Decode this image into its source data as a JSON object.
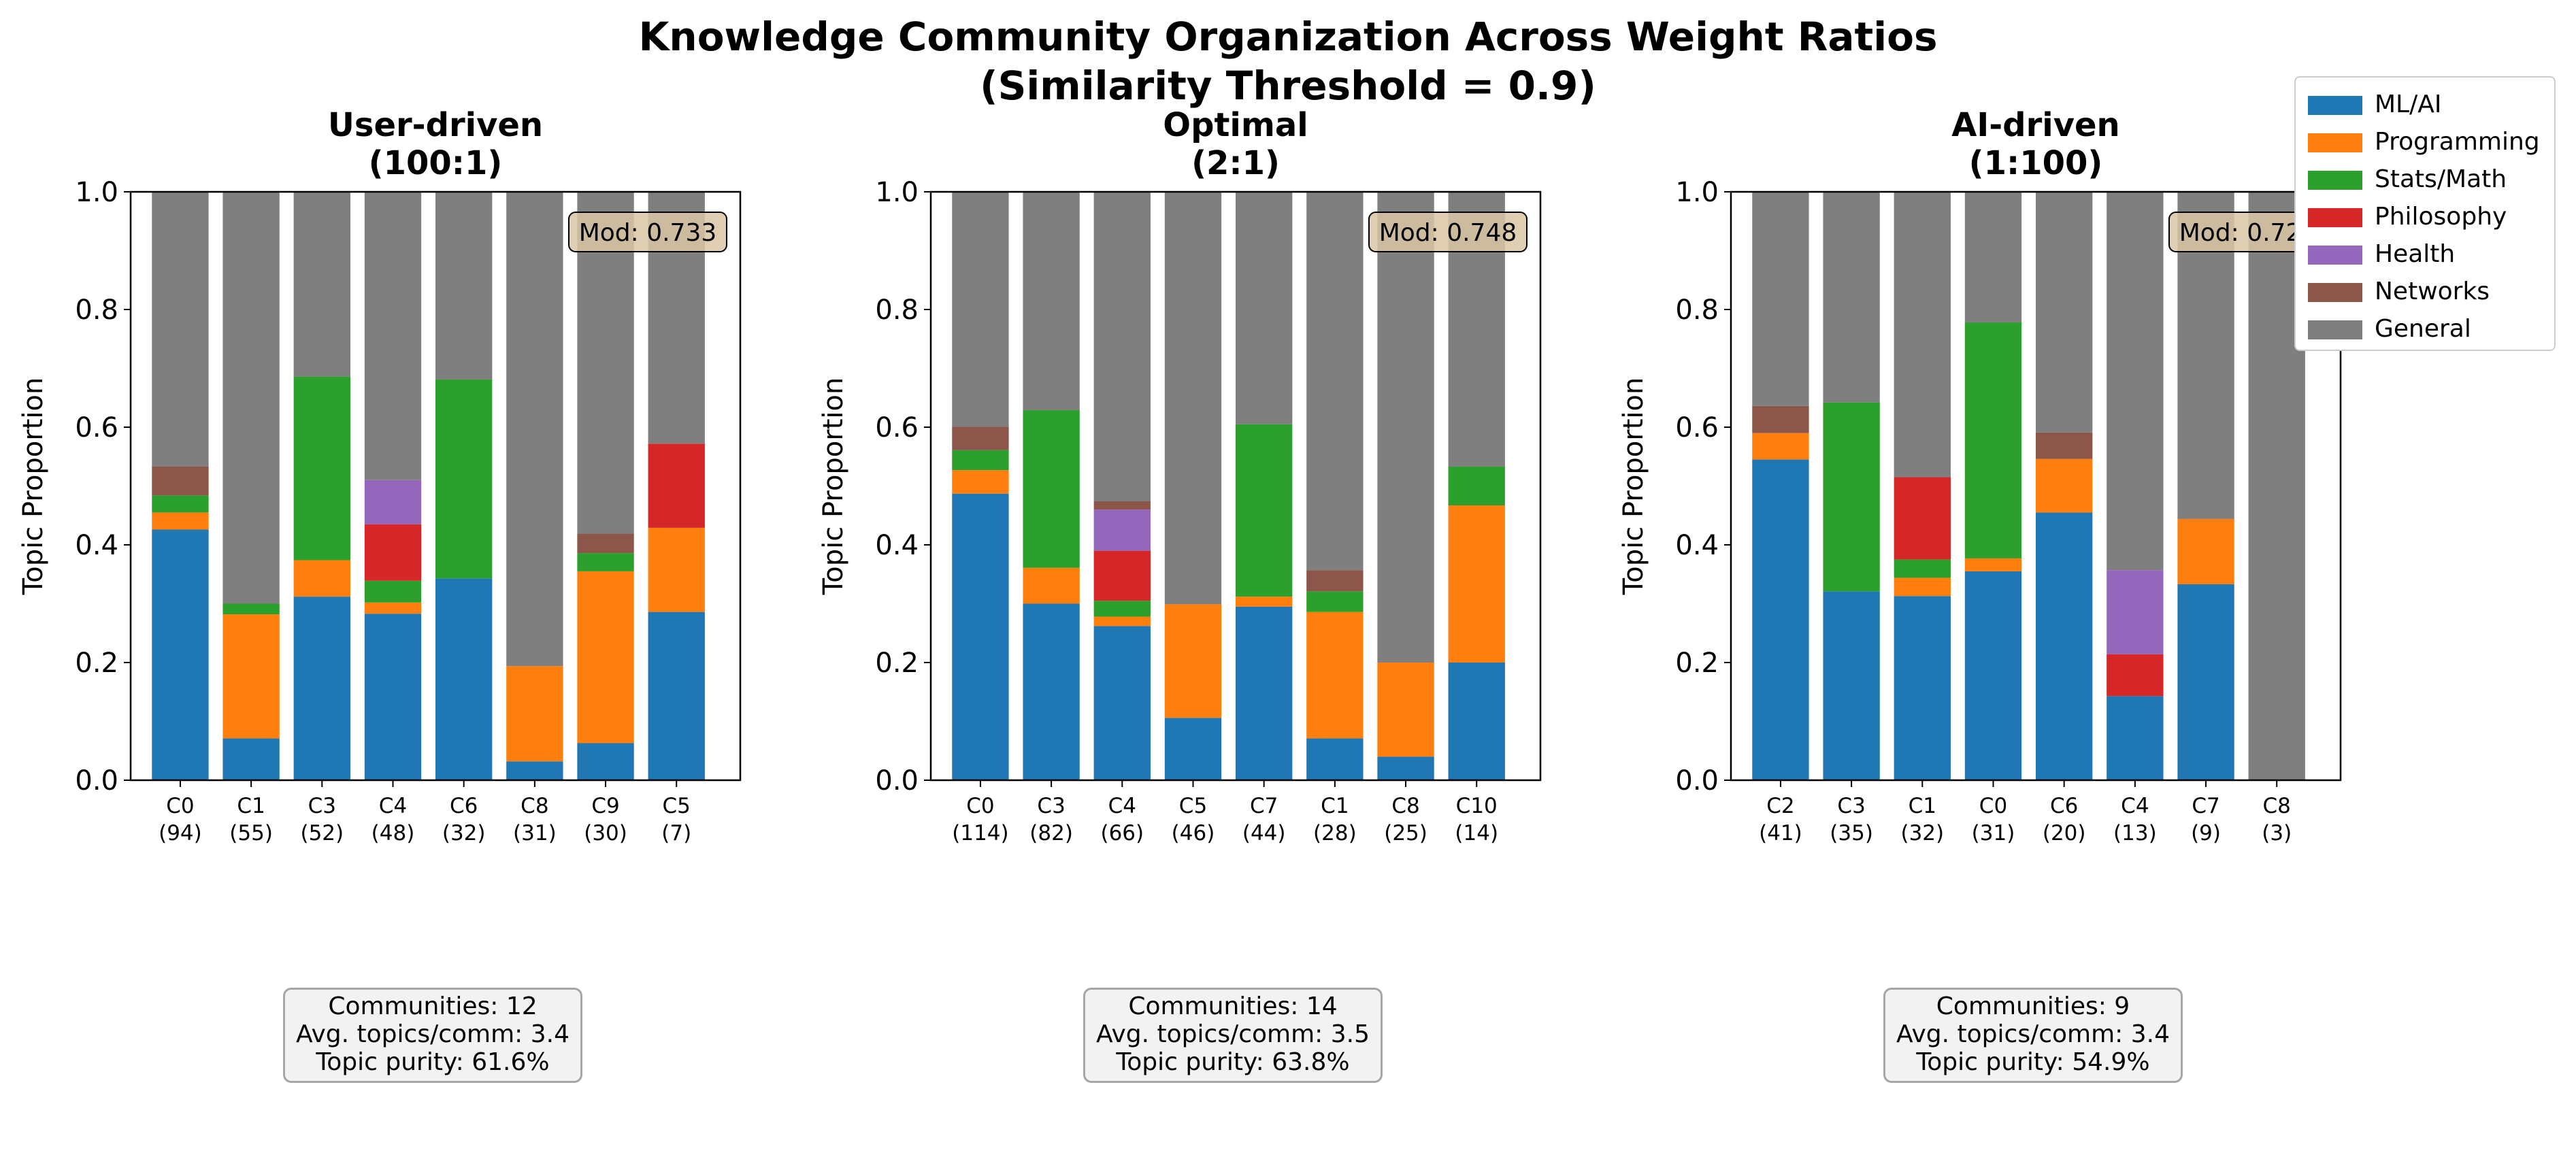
{
  "figure": {
    "title_line1": "Knowledge Community Organization Across Weight Ratios",
    "title_line2": "(Similarity Threshold = 0.9)"
  },
  "legend": {
    "placement": "top-right",
    "entries": [
      {
        "label": "ML/AI",
        "color": "#1f77b4"
      },
      {
        "label": "Programming",
        "color": "#ff7f0e"
      },
      {
        "label": "Stats/Math",
        "color": "#2ca02c"
      },
      {
        "label": "Philosophy",
        "color": "#d62728"
      },
      {
        "label": "Health",
        "color": "#9467bd"
      },
      {
        "label": "Networks",
        "color": "#8c564b"
      },
      {
        "label": "General",
        "color": "#7f7f7f"
      }
    ]
  },
  "chart_data": [
    {
      "type": "bar",
      "stacked": true,
      "title_line1": "User-driven",
      "title_line2": "(100:1)",
      "ylabel": "Topic Proportion",
      "ylim": [
        0,
        1
      ],
      "yticks": [
        "0.0",
        "0.2",
        "0.4",
        "0.6",
        "0.8",
        "1.0"
      ],
      "categories": [
        "C0",
        "C1",
        "C3",
        "C4",
        "C6",
        "C8",
        "C9",
        "C5"
      ],
      "category_counts": [
        "(94)",
        "(55)",
        "(52)",
        "(48)",
        "(32)",
        "(31)",
        "(30)",
        "(7)"
      ],
      "annotation": "Mod: 0.733",
      "series": [
        {
          "name": "ML/AI",
          "values": [
            0.426,
            0.071,
            0.312,
            0.283,
            0.343,
            0.032,
            0.063,
            0.286
          ]
        },
        {
          "name": "Programming",
          "values": [
            0.029,
            0.211,
            0.062,
            0.019,
            0.0,
            0.162,
            0.292,
            0.143
          ]
        },
        {
          "name": "Stats/Math",
          "values": [
            0.029,
            0.018,
            0.312,
            0.037,
            0.338,
            0.0,
            0.031,
            0.0
          ]
        },
        {
          "name": "Philosophy",
          "values": [
            0.0,
            0.0,
            0.0,
            0.096,
            0.0,
            0.0,
            0.0,
            0.143
          ]
        },
        {
          "name": "Health",
          "values": [
            0.0,
            0.0,
            0.0,
            0.075,
            0.0,
            0.0,
            0.0,
            0.0
          ]
        },
        {
          "name": "Networks",
          "values": [
            0.049,
            0.0,
            0.0,
            0.0,
            0.0,
            0.0,
            0.033,
            0.0
          ]
        },
        {
          "name": "General",
          "values": [
            0.467,
            0.7,
            0.314,
            0.49,
            0.319,
            0.806,
            0.581,
            0.428
          ]
        }
      ],
      "stats": [
        "Communities: 12",
        "Avg. topics/comm: 3.4",
        "Topic purity: 61.6%"
      ]
    },
    {
      "type": "bar",
      "stacked": true,
      "title_line1": "Optimal",
      "title_line2": "(2:1)",
      "ylabel": "Topic Proportion",
      "ylim": [
        0,
        1
      ],
      "yticks": [
        "0.0",
        "0.2",
        "0.4",
        "0.6",
        "0.8",
        "1.0"
      ],
      "categories": [
        "C0",
        "C3",
        "C4",
        "C5",
        "C7",
        "C1",
        "C8",
        "C10"
      ],
      "category_counts": [
        "(114)",
        "(82)",
        "(66)",
        "(46)",
        "(44)",
        "(28)",
        "(25)",
        "(14)"
      ],
      "annotation": "Mod: 0.748",
      "series": [
        {
          "name": "ML/AI",
          "values": [
            0.487,
            0.3,
            0.262,
            0.106,
            0.295,
            0.071,
            0.04,
            0.2
          ]
        },
        {
          "name": "Programming",
          "values": [
            0.04,
            0.061,
            0.016,
            0.193,
            0.017,
            0.215,
            0.16,
            0.267
          ]
        },
        {
          "name": "Stats/Math",
          "values": [
            0.034,
            0.268,
            0.027,
            0.0,
            0.293,
            0.035,
            0.0,
            0.066
          ]
        },
        {
          "name": "Philosophy",
          "values": [
            0.0,
            0.0,
            0.085,
            0.0,
            0.0,
            0.0,
            0.0,
            0.0
          ]
        },
        {
          "name": "Health",
          "values": [
            0.0,
            0.0,
            0.07,
            0.0,
            0.0,
            0.0,
            0.0,
            0.0
          ]
        },
        {
          "name": "Networks",
          "values": [
            0.04,
            0.0,
            0.014,
            0.0,
            0.0,
            0.036,
            0.0,
            0.0
          ]
        },
        {
          "name": "General",
          "values": [
            0.399,
            0.371,
            0.526,
            0.701,
            0.395,
            0.643,
            0.8,
            0.467
          ]
        }
      ],
      "stats": [
        "Communities: 14",
        "Avg. topics/comm: 3.5",
        "Topic purity: 63.8%"
      ]
    },
    {
      "type": "bar",
      "stacked": true,
      "title_line1": "AI-driven",
      "title_line2": "(1:100)",
      "ylabel": "Topic Proportion",
      "ylim": [
        0,
        1
      ],
      "yticks": [
        "0.0",
        "0.2",
        "0.4",
        "0.6",
        "0.8",
        "1.0"
      ],
      "categories": [
        "C2",
        "C3",
        "C1",
        "C0",
        "C6",
        "C4",
        "C7",
        "C8"
      ],
      "category_counts": [
        "(41)",
        "(35)",
        "(32)",
        "(31)",
        "(20)",
        "(13)",
        "(9)",
        "(3)"
      ],
      "annotation": "Mod: 0.729",
      "series": [
        {
          "name": "ML/AI",
          "values": [
            0.545,
            0.321,
            0.313,
            0.355,
            0.455,
            0.143,
            0.333,
            0.0
          ]
        },
        {
          "name": "Programming",
          "values": [
            0.045,
            0.0,
            0.031,
            0.022,
            0.091,
            0.0,
            0.111,
            0.0
          ]
        },
        {
          "name": "Stats/Math",
          "values": [
            0.0,
            0.321,
            0.031,
            0.401,
            0.0,
            0.0,
            0.0,
            0.0
          ]
        },
        {
          "name": "Philosophy",
          "values": [
            0.0,
            0.0,
            0.14,
            0.0,
            0.0,
            0.071,
            0.0,
            0.0
          ]
        },
        {
          "name": "Health",
          "values": [
            0.0,
            0.0,
            0.0,
            0.0,
            0.0,
            0.143,
            0.0,
            0.0
          ]
        },
        {
          "name": "Networks",
          "values": [
            0.046,
            0.0,
            0.0,
            0.0,
            0.045,
            0.0,
            0.0,
            0.0
          ]
        },
        {
          "name": "General",
          "values": [
            0.364,
            0.358,
            0.485,
            0.222,
            0.409,
            0.643,
            0.556,
            1.0
          ]
        }
      ],
      "stats": [
        "Communities: 9",
        "Avg. topics/comm: 3.4",
        "Topic purity: 54.9%"
      ]
    }
  ]
}
